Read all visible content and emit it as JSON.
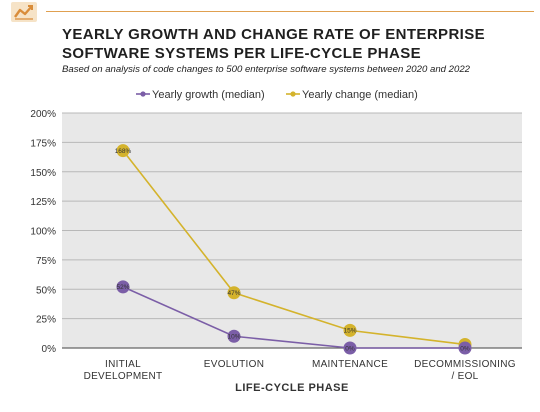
{
  "header": {
    "icon": "line-chart-icon",
    "accent_color": "#e0a050",
    "title": "YEARLY GROWTH AND CHANGE RATE OF ENTERPRISE SOFTWARE SYSTEMS PER LIFE-CYCLE PHASE",
    "subtitle": "Based on analysis of code changes to 500 enterprise software systems between 2020 and 2022"
  },
  "chart_data": {
    "type": "line",
    "title": "YEARLY GROWTH AND CHANGE RATE OF ENTERPRISE SOFTWARE SYSTEMS PER LIFE-CYCLE PHASE",
    "subtitle": "Based on analysis of code changes to 500 enterprise software systems between 2020 and 2022",
    "xlabel": "LIFE-CYCLE PHASE",
    "ylabel": "",
    "categories": [
      [
        "INITIAL",
        "DEVELOPMENT"
      ],
      [
        "EVOLUTION"
      ],
      [
        "MAINTENANCE"
      ],
      [
        "DECOMMISSIONING",
        "/ EOL"
      ]
    ],
    "ylim": [
      0,
      200
    ],
    "yticks": [
      "0%",
      "25%",
      "50%",
      "75%",
      "100%",
      "125%",
      "150%",
      "175%",
      "200%"
    ],
    "series": [
      {
        "name": "Yearly growth (median)",
        "color": "#7b5ea7",
        "values": [
          52,
          10,
          0,
          0
        ],
        "labels": [
          "52%",
          "10%",
          "0%",
          "0%"
        ]
      },
      {
        "name": "Yearly change (median)",
        "color": "#d4b32c",
        "values": [
          168,
          47,
          15,
          3
        ],
        "labels": [
          "168%",
          "47%",
          "15%",
          "3%"
        ]
      }
    ],
    "grid": true,
    "legend": "top-center",
    "plot_background": "#e8e8e8"
  }
}
